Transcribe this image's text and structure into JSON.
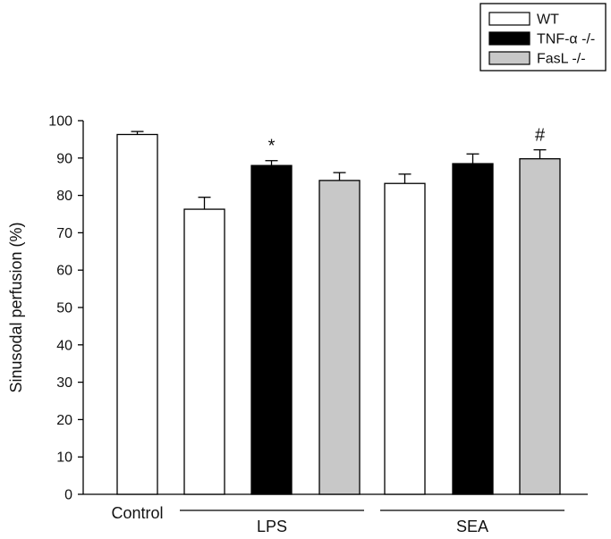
{
  "chart_data": {
    "type": "bar",
    "title": "",
    "ylabel": "Sinusodal perfusion (%)",
    "xlabel": "",
    "ylim": [
      0,
      100
    ],
    "yticks": [
      0,
      10,
      20,
      30,
      40,
      50,
      60,
      70,
      80,
      90,
      100
    ],
    "legend_position": "top-right",
    "series_styles": [
      {
        "name": "WT",
        "color": "#ffffff"
      },
      {
        "name": "TNF-α -/-",
        "color": "#000000"
      },
      {
        "name": "FasL -/-",
        "color": "#c8c8c8"
      }
    ],
    "groups": [
      {
        "label": "Control",
        "underline": false
      },
      {
        "label": "LPS",
        "underline": true
      },
      {
        "label": "SEA",
        "underline": true
      }
    ],
    "bars": [
      {
        "group": 0,
        "series": "WT",
        "value": 96.3,
        "error": 0.8,
        "annotation": ""
      },
      {
        "group": 1,
        "series": "WT",
        "value": 76.3,
        "error": 3.2,
        "annotation": ""
      },
      {
        "group": 1,
        "series": "TNF-α -/-",
        "value": 88.0,
        "error": 1.3,
        "annotation": "*"
      },
      {
        "group": 1,
        "series": "FasL -/-",
        "value": 84.0,
        "error": 2.1,
        "annotation": ""
      },
      {
        "group": 2,
        "series": "WT",
        "value": 83.2,
        "error": 2.5,
        "annotation": ""
      },
      {
        "group": 2,
        "series": "TNF-α -/-",
        "value": 88.5,
        "error": 2.6,
        "annotation": ""
      },
      {
        "group": 2,
        "series": "FasL -/-",
        "value": 89.8,
        "error": 2.4,
        "annotation": "#"
      }
    ]
  }
}
